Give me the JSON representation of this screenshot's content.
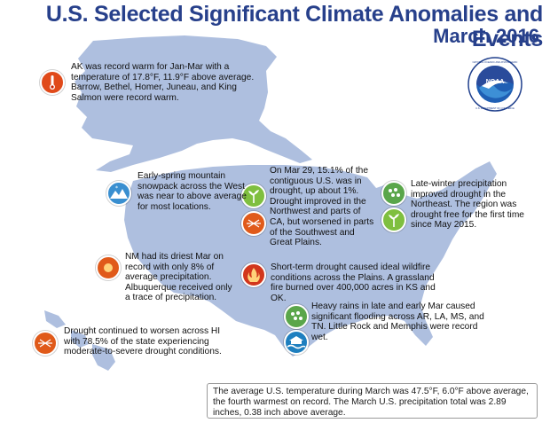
{
  "title": "U.S. Selected Significant Climate Anomalies and Events",
  "subtitle": "March 2016",
  "logo": {
    "text": "NOAA",
    "ring_text_top": "NATIONAL OCEANIC AND ATMOSPHERIC",
    "ring_text_bottom": "U.S. DEPARTMENT OF COMMERCE"
  },
  "colors": {
    "title": "#27408b",
    "map_fill": "#aebfdf",
    "warm_icon": "#e04a1a",
    "drought_improve_icon": "#7fbf3f",
    "snow_icon": "#3a8fd0",
    "fire_icon": "#d2361c",
    "flood_icon": "#1e7fbf"
  },
  "events": [
    {
      "icon": "record-warm-icon",
      "text": "AK was record warm for Jan-Mar with a temperature of 17.8°F, 11.9°F above average. Barrow, Bethel, Homer, Juneau, and King Salmon were record warm."
    },
    {
      "icon": "snowpack-icon",
      "text": "Early-spring mountain snowpack across the West was near to above average for most locations."
    },
    {
      "icon": "drought-icon",
      "text": "On Mar 29, 15.1% of the contiguous U.S. was in drought, up about 1%. Drought improved in the Northwest and parts of CA, but worsened in parts of the Southwest and Great Plains."
    },
    {
      "icon": "precipitation-icon",
      "text": "Late-winter precipitation improved drought in the Northeast. The region was drought free for the first time since May 2015."
    },
    {
      "icon": "dry-icon",
      "text": "NM had its driest Mar on record with only 8% of average precipitation. Albuquerque received only a trace of precipitation."
    },
    {
      "icon": "wildfire-icon",
      "text": "Short-term drought caused ideal wildfire conditions across the Plains. A grassland fire burned over 400,000 acres in KS and OK."
    },
    {
      "icon": "heavy-rain-icon",
      "text": "Heavy rains in late and early Mar caused significant flooding across AR, LA, MS, and TN. Little Rock and Memphis were record wet."
    },
    {
      "icon": "hawaii-drought-icon",
      "text": "Drought continued to worsen across HI with 78.5% of the state experiencing moderate-to-severe drought conditions."
    }
  ],
  "summary": "The average U.S. temperature during March was 47.5°F, 6.0°F above average, the fourth warmest on record. The March U.S. precipitation total was 2.89 inches, 0.38 inch above average."
}
